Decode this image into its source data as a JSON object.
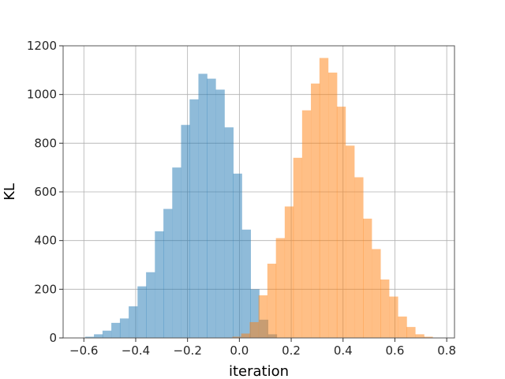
{
  "chart_data": {
    "type": "bar",
    "title": "",
    "xlabel": "iteration",
    "ylabel": "KL",
    "xlim": [
      -0.68,
      0.83
    ],
    "ylim": [
      0,
      1200
    ],
    "xticks": [
      -0.6,
      -0.4,
      -0.2,
      0.0,
      0.2,
      0.4,
      0.6,
      0.8
    ],
    "xtick_labels": [
      "−0.6",
      "−0.4",
      "−0.2",
      "0.0",
      "0.2",
      "0.4",
      "0.6",
      "0.8"
    ],
    "yticks": [
      0,
      200,
      400,
      600,
      800,
      1000,
      1200
    ],
    "ytick_labels": [
      "0",
      "200",
      "400",
      "600",
      "800",
      "1000",
      "1200"
    ],
    "grid": true,
    "legend": "none",
    "series": [
      {
        "color": "#1f77b4",
        "opacity": 0.5,
        "bin_width": 0.0336,
        "bins_start": [
          -0.595,
          -0.561,
          -0.528,
          -0.494,
          -0.461,
          -0.427,
          -0.393,
          -0.36,
          -0.326,
          -0.293,
          -0.259,
          -0.225,
          -0.192,
          -0.158,
          -0.125,
          -0.091,
          -0.057,
          -0.024,
          0.01,
          0.043,
          0.077,
          0.111
        ],
        "values": [
          5,
          15,
          30,
          62,
          80,
          130,
          212,
          270,
          438,
          530,
          700,
          875,
          980,
          1085,
          1065,
          1020,
          865,
          675,
          445,
          200,
          75,
          15
        ]
      },
      {
        "color": "#ff7f0e",
        "opacity": 0.5,
        "bin_width": 0.0336,
        "bins_start": [
          -0.027,
          0.007,
          0.04,
          0.074,
          0.108,
          0.141,
          0.175,
          0.208,
          0.242,
          0.276,
          0.309,
          0.343,
          0.376,
          0.41,
          0.444,
          0.477,
          0.511,
          0.544,
          0.578,
          0.612,
          0.645,
          0.679,
          0.712
        ],
        "values": [
          5,
          18,
          65,
          175,
          305,
          410,
          540,
          740,
          935,
          1045,
          1150,
          1090,
          950,
          790,
          660,
          490,
          365,
          240,
          170,
          88,
          45,
          15,
          5
        ]
      }
    ]
  }
}
